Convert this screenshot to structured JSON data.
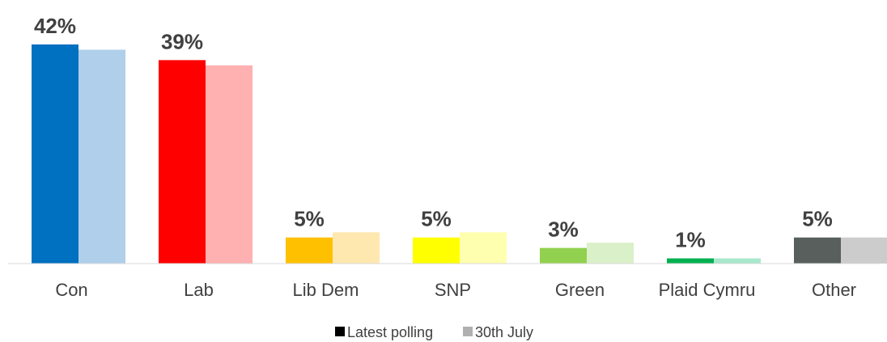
{
  "chart_data": {
    "type": "bar",
    "categories": [
      "Con",
      "Lab",
      "Lib Dem",
      "SNP",
      "Green",
      "Plaid Cymru",
      "Other"
    ],
    "series": [
      {
        "name": "Latest polling",
        "values": [
          42,
          39,
          5,
          5,
          3,
          1,
          5
        ],
        "value_labels": [
          "42%",
          "39%",
          "5%",
          "5%",
          "3%",
          "1%",
          "5%"
        ],
        "colors": [
          "#0070C0",
          "#FF0000",
          "#FFC000",
          "#FFFF00",
          "#92D050",
          "#00B050",
          "#595F5C"
        ]
      },
      {
        "name": "30th July",
        "values": [
          41,
          38,
          6,
          6,
          4,
          1,
          5
        ],
        "colors": [
          "#AFCFEA",
          "#FFB0B0",
          "#FFE8B0",
          "#FFFFB0",
          "#DAF0C8",
          "#A8E8CC",
          "#CCCCCC"
        ]
      }
    ],
    "legend": {
      "position": "bottom",
      "swatches": [
        "#000000",
        "#B0B0B0"
      ]
    },
    "ylim": [
      0,
      42
    ],
    "grid": false
  }
}
